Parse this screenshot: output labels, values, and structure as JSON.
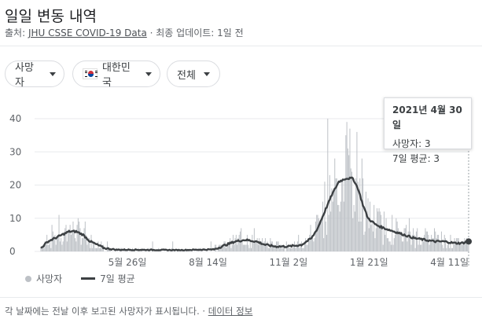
{
  "header": {
    "title": "일일 변동 내역",
    "source_prefix": "출처: ",
    "source_link": "JHU CSSE COVID-19 Data",
    "source_suffix": " · 최종 업데이트: 1일 전"
  },
  "filters": {
    "metric": "사망자",
    "country": "대한민국",
    "scope": "전체"
  },
  "tooltip": {
    "date": "2021년 4월 30일",
    "deaths": "사망자: 3",
    "avg": "7일 평균: 3"
  },
  "legend": {
    "bars": "사망자",
    "line": "7일 평균"
  },
  "footer": {
    "note": "각 날짜에는 전날 이후 보고된 사망자가 표시됩니다. · ",
    "link": "데이터 정보"
  },
  "colors": {
    "bar": "#bdc1c6",
    "line": "#3c4043",
    "grid": "#e8eaed"
  },
  "chart_data": {
    "type": "bar",
    "title": "",
    "xlabel": "",
    "ylabel": "",
    "ylim": [
      0,
      40
    ],
    "yticks": [
      0,
      10,
      20,
      30,
      40
    ],
    "xticks": [
      "5월 26일",
      "8월 14일",
      "11월 2일",
      "1월 21일",
      "4월 11일"
    ],
    "x_start": "2020-03-01",
    "x_end": "2021-04-30",
    "tick_dates": [
      "2020-05-26",
      "2020-08-14",
      "2020-11-02",
      "2021-01-21",
      "2021-04-11"
    ],
    "anchors_avg": [
      [
        "2020-03-01",
        1
      ],
      [
        "2020-03-08",
        3
      ],
      [
        "2020-03-15",
        4
      ],
      [
        "2020-03-22",
        5
      ],
      [
        "2020-03-29",
        6
      ],
      [
        "2020-04-05",
        6
      ],
      [
        "2020-04-12",
        5
      ],
      [
        "2020-04-19",
        3
      ],
      [
        "2020-04-26",
        2
      ],
      [
        "2020-05-03",
        1
      ],
      [
        "2020-05-15",
        0.5
      ],
      [
        "2020-06-01",
        0.5
      ],
      [
        "2020-07-15",
        0.4
      ],
      [
        "2020-08-20",
        0.6
      ],
      [
        "2020-09-01",
        2
      ],
      [
        "2020-09-10",
        3
      ],
      [
        "2020-09-20",
        3.5
      ],
      [
        "2020-10-01",
        3
      ],
      [
        "2020-10-10",
        2
      ],
      [
        "2020-10-20",
        1.5
      ],
      [
        "2020-11-02",
        1.5
      ],
      [
        "2020-11-15",
        2
      ],
      [
        "2020-11-25",
        4
      ],
      [
        "2020-12-01",
        7
      ],
      [
        "2020-12-08",
        12
      ],
      [
        "2020-12-15",
        17
      ],
      [
        "2020-12-22",
        21
      ],
      [
        "2020-12-29",
        22
      ],
      [
        "2021-01-05",
        22
      ],
      [
        "2021-01-10",
        19
      ],
      [
        "2021-01-15",
        14
      ],
      [
        "2021-01-20",
        10
      ],
      [
        "2021-01-28",
        8
      ],
      [
        "2021-02-05",
        7
      ],
      [
        "2021-02-15",
        6
      ],
      [
        "2021-02-25",
        5
      ],
      [
        "2021-03-07",
        4
      ],
      [
        "2021-03-17",
        3.5
      ],
      [
        "2021-03-27",
        3
      ],
      [
        "2021-04-06",
        3
      ],
      [
        "2021-04-16",
        2.5
      ],
      [
        "2021-04-23",
        2.5
      ],
      [
        "2021-04-30",
        3
      ]
    ],
    "peaks": [
      [
        "2020-03-19",
        11
      ],
      [
        "2020-12-11",
        40
      ],
      [
        "2020-12-29",
        35
      ],
      [
        "2021-01-03",
        25
      ],
      [
        "2020-12-18",
        28
      ]
    ],
    "last_point": [
      "2021-04-30",
      3
    ]
  }
}
